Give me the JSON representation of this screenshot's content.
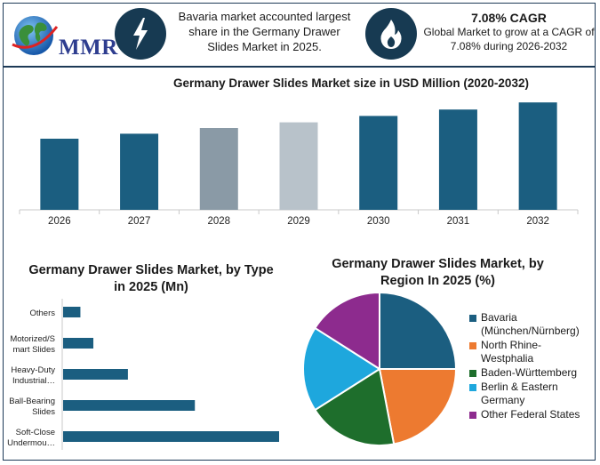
{
  "header": {
    "logo_text": "MMR",
    "stat1_text": "Bavaria market accounted largest share in the Germany Drawer Slides Market in 2025.",
    "stat1_icon": "lightning-bolt-icon",
    "stat2_title": "7.08% CAGR",
    "stat2_text": "Global Market to grow at a CAGR of 7.08% during 2026-2032",
    "stat2_icon": "flame-icon"
  },
  "colors": {
    "dark_teal": "#1b5e80",
    "gray": "#8a9aa6",
    "light_gray": "#b8c2ca",
    "orange": "#ed7a30",
    "green": "#1e6e2c",
    "light_blue": "#1ea7dd",
    "purple": "#8d2b8e",
    "border": "#1d3a57"
  },
  "chart_data": [
    {
      "type": "bar",
      "title": "Germany Drawer Slides Market size in USD Million (2020-2032)",
      "categories": [
        "2026",
        "2027",
        "2028",
        "2029",
        "2030",
        "2031",
        "2032"
      ],
      "values": [
        100,
        107,
        115,
        123,
        132,
        141,
        151
      ],
      "bar_colors": [
        "#1b5e80",
        "#1b5e80",
        "#8a9aa6",
        "#b8c2ca",
        "#1b5e80",
        "#1b5e80",
        "#1b5e80"
      ],
      "ylim": [
        0,
        160
      ],
      "grid": false
    },
    {
      "type": "bar",
      "orientation": "horizontal",
      "title": "Germany Drawer Slides Market, by Type in 2025 (Mn)",
      "categories": [
        "Others",
        "Motorized/Smart Slides",
        "Heavy-Duty Industrial…",
        "Ball-Bearing Slides",
        "Soft-Close Undermou…"
      ],
      "category_display": [
        [
          "Others"
        ],
        [
          "Motorized/S",
          "mart Slides"
        ],
        [
          "Heavy-Duty",
          "Industrial…"
        ],
        [
          "Ball-Bearing",
          "Slides"
        ],
        [
          "Soft-Close",
          "Undermou…"
        ]
      ],
      "values": [
        8,
        14,
        30,
        61,
        100
      ],
      "xlim": [
        0,
        100
      ],
      "color": "#1b5e80",
      "grid": false
    },
    {
      "type": "pie",
      "title": "Germany Drawer Slides Market, by Region In 2025 (%)",
      "labels": [
        "Bavaria (München/Nürnberg)",
        "North Rhine-Westphalia",
        "Baden-Württemberg",
        "Berlin & Eastern Germany",
        "Other Federal States"
      ],
      "legend_display": [
        [
          "Bavaria",
          "(München/Nürnberg)"
        ],
        [
          "North Rhine-",
          "Westphalia"
        ],
        [
          "Baden-Württemberg"
        ],
        [
          "Berlin & Eastern",
          "Germany"
        ],
        [
          "Other Federal States"
        ]
      ],
      "values": [
        25,
        22,
        19,
        18,
        16
      ],
      "colors": [
        "#1b5e80",
        "#ed7a30",
        "#1e6e2c",
        "#1ea7dd",
        "#8d2b8e"
      ],
      "legend_position": "right"
    }
  ]
}
